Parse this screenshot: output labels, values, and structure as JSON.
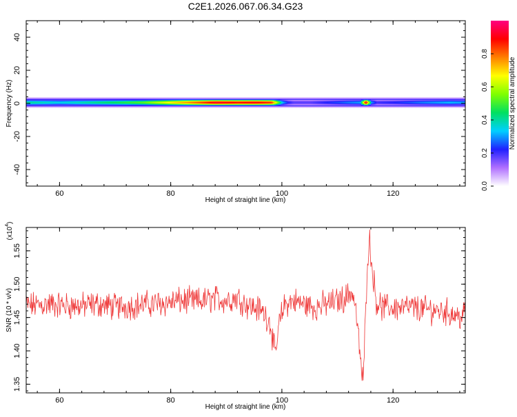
{
  "title": "C2E1.2026.067.06.34.G23",
  "chart_data": [
    {
      "type": "heatmap",
      "xlabel": "Height of straight line (km)",
      "ylabel": "Frequency (Hz)",
      "xlim": [
        54,
        133
      ],
      "ylim": [
        -50,
        50
      ],
      "x_ticks": [
        60,
        80,
        100,
        120
      ],
      "x_tick_labels": [
        "60",
        "80",
        "100",
        "120"
      ],
      "y_ticks": [
        -40,
        -20,
        0,
        20,
        40
      ],
      "y_tick_labels": [
        "-40",
        "-20",
        "0",
        "20",
        "40"
      ],
      "band_center_hz": 0.5,
      "band_profile": {
        "x": [
          55,
          60,
          65,
          70,
          75,
          80,
          85,
          88,
          90,
          92,
          95,
          98,
          99,
          100,
          101,
          102,
          105,
          110,
          112,
          114,
          115,
          116,
          117,
          120,
          125,
          130,
          133
        ],
        "amplitude": [
          0.4,
          0.35,
          0.4,
          0.45,
          0.52,
          0.68,
          0.82,
          0.92,
          0.9,
          0.88,
          0.9,
          0.85,
          0.6,
          0.32,
          0.22,
          0.18,
          0.18,
          0.25,
          0.28,
          0.3,
          0.95,
          0.3,
          0.2,
          0.22,
          0.28,
          0.32,
          0.3
        ]
      },
      "colorbar": {
        "label": "Normalized spectral amplitude",
        "range": [
          0,
          1
        ],
        "ticks": [
          0,
          0.2,
          0.4,
          0.6,
          0.8
        ],
        "tick_labels": [
          "0.0",
          "0.2",
          "0.4",
          "0.6",
          "0.8"
        ],
        "colors": [
          "#ffffff",
          "#b070ff",
          "#2020ff",
          "#00d0ff",
          "#00e060",
          "#80ff00",
          "#ffff00",
          "#ff8000",
          "#ff0000",
          "#ff0080"
        ]
      }
    },
    {
      "type": "line",
      "xlabel": "Height of straight line (km)",
      "ylabel": "SNR (10 * v/v)",
      "y_multiplier": "(x10",
      "y_multiplier_exp": "4",
      "y_multiplier_close": ")",
      "xlim": [
        54,
        133
      ],
      "ylim": [
        1.337,
        1.585
      ],
      "x_ticks": [
        60,
        80,
        100,
        120
      ],
      "x_tick_labels": [
        "60",
        "80",
        "100",
        "120"
      ],
      "y_ticks": [
        1.35,
        1.4,
        1.45,
        1.5,
        1.55
      ],
      "y_tick_labels": [
        "1.35",
        "1.40",
        "1.45",
        "1.50",
        "1.55"
      ],
      "line_color": "#ee3333",
      "series": [
        {
          "x": [
            55,
            58,
            61,
            64,
            67,
            70,
            73,
            76,
            79,
            82,
            85,
            88,
            90,
            92,
            94,
            96,
            97,
            98,
            98.8,
            99.5,
            100.5,
            102,
            104,
            106,
            108,
            110,
            111.5,
            112.5,
            113.2,
            114,
            114.6,
            115,
            115.4,
            115.8,
            116.3,
            117,
            118,
            120,
            123,
            126,
            129,
            131,
            132.5,
            133
          ],
          "y": [
            1.468,
            1.47,
            1.468,
            1.467,
            1.47,
            1.466,
            1.468,
            1.47,
            1.472,
            1.475,
            1.474,
            1.478,
            1.476,
            1.48,
            1.468,
            1.462,
            1.455,
            1.44,
            1.39,
            1.44,
            1.47,
            1.475,
            1.47,
            1.465,
            1.47,
            1.475,
            1.48,
            1.49,
            1.47,
            1.4,
            1.35,
            1.44,
            1.54,
            1.565,
            1.52,
            1.475,
            1.465,
            1.465,
            1.465,
            1.462,
            1.46,
            1.455,
            1.45,
            1.46
          ]
        }
      ]
    }
  ]
}
